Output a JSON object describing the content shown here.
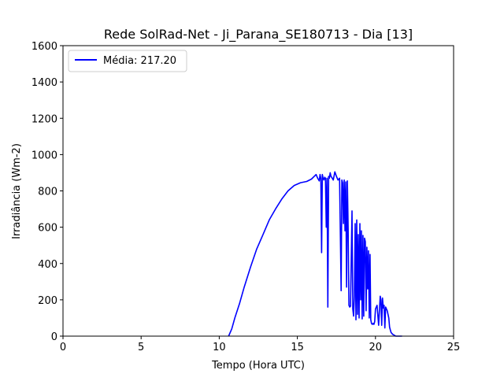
{
  "chart_data": {
    "type": "line",
    "title": "Rede SolRad-Net - Ji_Parana_SE180713 - Dia [13]",
    "xlabel": "Tempo (Hora UTC)",
    "ylabel": "Irradiância (Wm-2)",
    "xlim": [
      0,
      25
    ],
    "ylim": [
      0,
      1600
    ],
    "xticks": [
      0,
      5,
      10,
      15,
      20,
      25
    ],
    "yticks": [
      0,
      200,
      400,
      600,
      800,
      1000,
      1200,
      1400,
      1600
    ],
    "grid": false,
    "legend_position": "top-left",
    "series": [
      {
        "name": "Média: 217.20",
        "color": "#0000ff",
        "x": [
          10.6,
          10.8,
          11.0,
          11.3,
          11.6,
          12.0,
          12.4,
          12.8,
          13.2,
          13.6,
          14.0,
          14.4,
          14.8,
          15.2,
          15.6,
          15.9,
          16.2,
          16.3,
          16.4,
          16.45,
          16.5,
          16.55,
          16.6,
          16.65,
          16.7,
          16.75,
          16.8,
          16.85,
          16.9,
          16.95,
          17.0,
          17.05,
          17.1,
          17.15,
          17.2,
          17.3,
          17.4,
          17.5,
          17.6,
          17.7,
          17.8,
          17.85,
          17.9,
          17.95,
          18.0,
          18.05,
          18.1,
          18.15,
          18.2,
          18.25,
          18.3,
          18.35,
          18.4,
          18.5,
          18.55,
          18.6,
          18.65,
          18.7,
          18.75,
          18.8,
          18.85,
          18.9,
          18.95,
          19.0,
          19.05,
          19.1,
          19.15,
          19.2,
          19.25,
          19.3,
          19.35,
          19.4,
          19.45,
          19.5,
          19.55,
          19.6,
          19.65,
          19.7,
          19.75,
          19.8,
          19.85,
          19.9,
          19.95,
          20.0,
          20.1,
          20.2,
          20.3,
          20.35,
          20.4,
          20.45,
          20.5,
          20.55,
          20.6,
          20.65,
          20.7,
          20.75,
          20.8,
          20.85,
          20.9,
          20.95,
          21.0,
          21.1,
          21.2,
          21.3,
          21.4,
          21.5,
          21.6,
          21.7
        ],
        "y": [
          0,
          40,
          100,
          180,
          270,
          380,
          480,
          560,
          640,
          700,
          755,
          800,
          830,
          845,
          852,
          865,
          890,
          870,
          855,
          890,
          870,
          460,
          890,
          870,
          860,
          875,
          870,
          600,
          870,
          160,
          880,
          870,
          900,
          880,
          875,
          860,
          905,
          880,
          860,
          870,
          250,
          860,
          845,
          620,
          860,
          580,
          850,
          270,
          855,
          590,
          170,
          160,
          165,
          690,
          150,
          110,
          220,
          620,
          90,
          640,
          120,
          560,
          100,
          620,
          200,
          580,
          95,
          555,
          110,
          540,
          520,
          140,
          490,
          260,
          470,
          100,
          450,
          90,
          70,
          65,
          70,
          65,
          80,
          150,
          170,
          60,
          220,
          200,
          60,
          210,
          155,
          170,
          45,
          160,
          150,
          140,
          120,
          100,
          50,
          35,
          20,
          10,
          5,
          0,
          0,
          0,
          0,
          0
        ]
      }
    ]
  }
}
